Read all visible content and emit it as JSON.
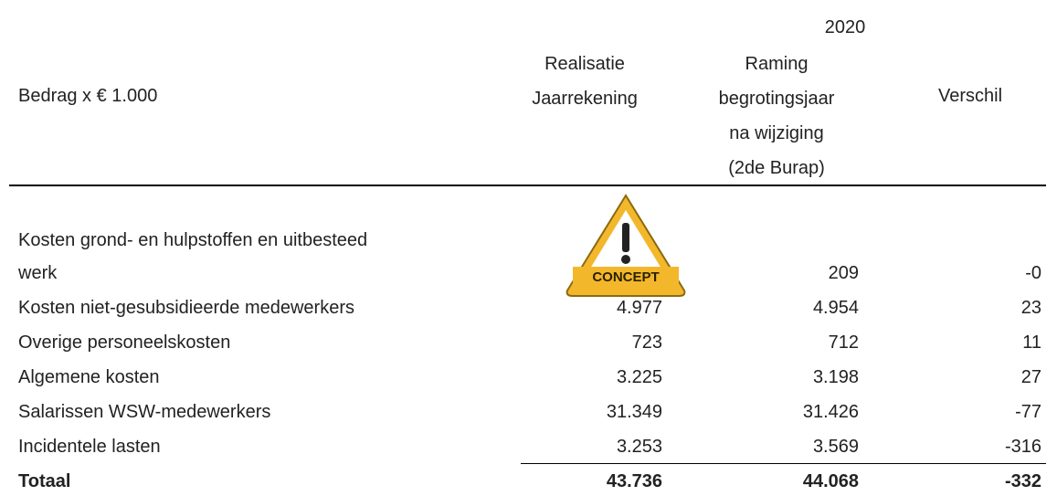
{
  "header": {
    "year": "2020",
    "unit": "Bedrag x € 1.000",
    "columns": [
      {
        "lines": [
          "Realisatie",
          "Jaarrekening"
        ]
      },
      {
        "lines": [
          "Raming",
          "begrotingsjaar",
          "na wijziging",
          "(2de Burap)"
        ]
      },
      {
        "lines": [
          "Verschil"
        ]
      }
    ]
  },
  "concept_badge": "CONCEPT",
  "table": {
    "rows": [
      {
        "label_lines": [
          "Kosten grond- en hulpstoffen en uitbesteed",
          "werk"
        ],
        "raming": "209",
        "verschil": "-0"
      },
      {
        "label_lines": [
          "Kosten niet-gesubsidieerde medewerkers"
        ],
        "realisatie": "4.977",
        "raming": "4.954",
        "verschil": "23"
      },
      {
        "label_lines": [
          "Overige personeelskosten"
        ],
        "realisatie": "723",
        "raming": "712",
        "verschil": "11"
      },
      {
        "label_lines": [
          "Algemene kosten"
        ],
        "realisatie": "3.225",
        "raming": "3.198",
        "verschil": "27"
      },
      {
        "label_lines": [
          "Salarissen WSW-medewerkers"
        ],
        "realisatie": "31.349",
        "raming": "31.426",
        "verschil": "-77"
      },
      {
        "label_lines": [
          "Incidentele lasten"
        ],
        "realisatie": "3.253",
        "raming": "3.569",
        "verschil": "-316"
      }
    ],
    "total": {
      "label": "Totaal",
      "realisatie": "43.736",
      "raming": "44.068",
      "verschil": "-332"
    }
  }
}
